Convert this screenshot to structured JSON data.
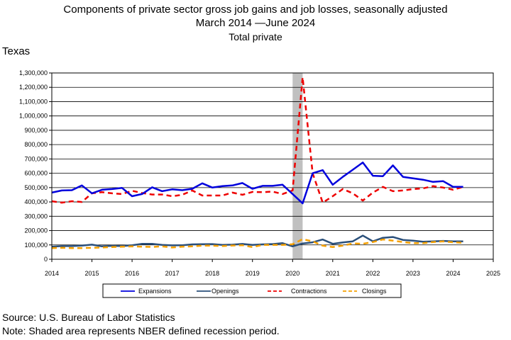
{
  "header": {
    "title_line1": "Components of private sector gross job gains and job losses, seasonally adjusted",
    "title_line2": "March 2014 —June 2024",
    "title_line3": "Total private",
    "region": "Texas"
  },
  "footer": {
    "source": "Source: U.S. Bureau of Labor Statistics",
    "note": "Note: Shaded area represents NBER defined recession period."
  },
  "chart_data": {
    "type": "line",
    "title": "Components of private sector gross job gains and job losses, seasonally adjusted",
    "subtitle": "March 2014 —June 2024",
    "xlim": [
      2014,
      2025
    ],
    "ylim": [
      0,
      1300000
    ],
    "x_ticks": [
      2014,
      2015,
      2016,
      2017,
      2018,
      2019,
      2020,
      2021,
      2022,
      2023,
      2024,
      2025
    ],
    "x_tick_labels": [
      "2014",
      "2015",
      "2016",
      "2017",
      "2018",
      "2019",
      "2020",
      "2021",
      "2022",
      "2023",
      "2024",
      "2025"
    ],
    "y_ticks": [
      0,
      100000,
      200000,
      300000,
      400000,
      500000,
      600000,
      700000,
      800000,
      900000,
      1000000,
      1100000,
      1200000,
      1300000
    ],
    "y_tick_labels": [
      "0",
      "100,000",
      "200,000",
      "300,000",
      "400,000",
      "500,000",
      "600,000",
      "700,000",
      "800,000",
      "900,000",
      "1,000,000",
      "1,100,000",
      "1,200,000",
      "1,300,000"
    ],
    "grid": true,
    "legend_position": "bottom",
    "recession_shading": [
      2020.0,
      2020.25
    ],
    "x": [
      2014.0,
      2014.25,
      2014.5,
      2014.75,
      2015.0,
      2015.25,
      2015.5,
      2015.75,
      2016.0,
      2016.25,
      2016.5,
      2016.75,
      2017.0,
      2017.25,
      2017.5,
      2017.75,
      2018.0,
      2018.25,
      2018.5,
      2018.75,
      2019.0,
      2019.25,
      2019.5,
      2019.75,
      2020.0,
      2020.25,
      2020.5,
      2020.75,
      2021.0,
      2021.25,
      2021.5,
      2021.75,
      2022.0,
      2022.25,
      2022.5,
      2022.75,
      2023.0,
      2023.25,
      2023.5,
      2023.75,
      2024.0,
      2024.25
    ],
    "series": [
      {
        "name": "Expansions",
        "color": "#0000dd",
        "dash": "solid",
        "values": [
          465000,
          480000,
          482000,
          515000,
          460000,
          485000,
          490000,
          498000,
          440000,
          455000,
          502000,
          475000,
          488000,
          482000,
          492000,
          530000,
          500000,
          510000,
          515000,
          532000,
          492000,
          512000,
          512000,
          520000,
          455000,
          390000,
          600000,
          622000,
          520000,
          575000,
          625000,
          675000,
          583000,
          580000,
          655000,
          575000,
          565000,
          555000,
          540000,
          545000,
          505000,
          505000
        ]
      },
      {
        "name": "Openings",
        "color": "#2a4f7a",
        "dash": "solid",
        "values": [
          88000,
          92000,
          92000,
          95000,
          102000,
          90000,
          94000,
          92000,
          98000,
          108000,
          108000,
          100000,
          97000,
          98000,
          104000,
          105000,
          106000,
          100000,
          102000,
          107000,
          100000,
          104000,
          106000,
          112000,
          90000,
          110000,
          118000,
          138000,
          108000,
          117000,
          125000,
          165000,
          125000,
          150000,
          155000,
          135000,
          130000,
          122000,
          125000,
          128000,
          125000,
          125000
        ]
      },
      {
        "name": "Contractions",
        "color": "#ee0000",
        "dash": "dashed",
        "values": [
          405000,
          395000,
          405000,
          400000,
          460000,
          468000,
          460000,
          455000,
          478000,
          462000,
          452000,
          452000,
          440000,
          450000,
          480000,
          445000,
          445000,
          445000,
          465000,
          450000,
          470000,
          468000,
          472000,
          455000,
          480000,
          1270000,
          600000,
          395000,
          440000,
          490000,
          460000,
          410000,
          465000,
          505000,
          475000,
          480000,
          490000,
          495000,
          510000,
          500000,
          485000,
          505000
        ]
      },
      {
        "name": "Closings",
        "color": "#f5a000",
        "dash": "dashed",
        "values": [
          78000,
          80000,
          78000,
          78000,
          80000,
          82000,
          85000,
          88000,
          90000,
          88000,
          86000,
          90000,
          82000,
          88000,
          90000,
          95000,
          95000,
          92000,
          96000,
          98000,
          85000,
          100000,
          100000,
          100000,
          105000,
          140000,
          125000,
          95000,
          85000,
          95000,
          110000,
          108000,
          120000,
          138000,
          130000,
          120000,
          112000,
          112000,
          120000,
          125000,
          118000,
          115000
        ]
      }
    ]
  }
}
